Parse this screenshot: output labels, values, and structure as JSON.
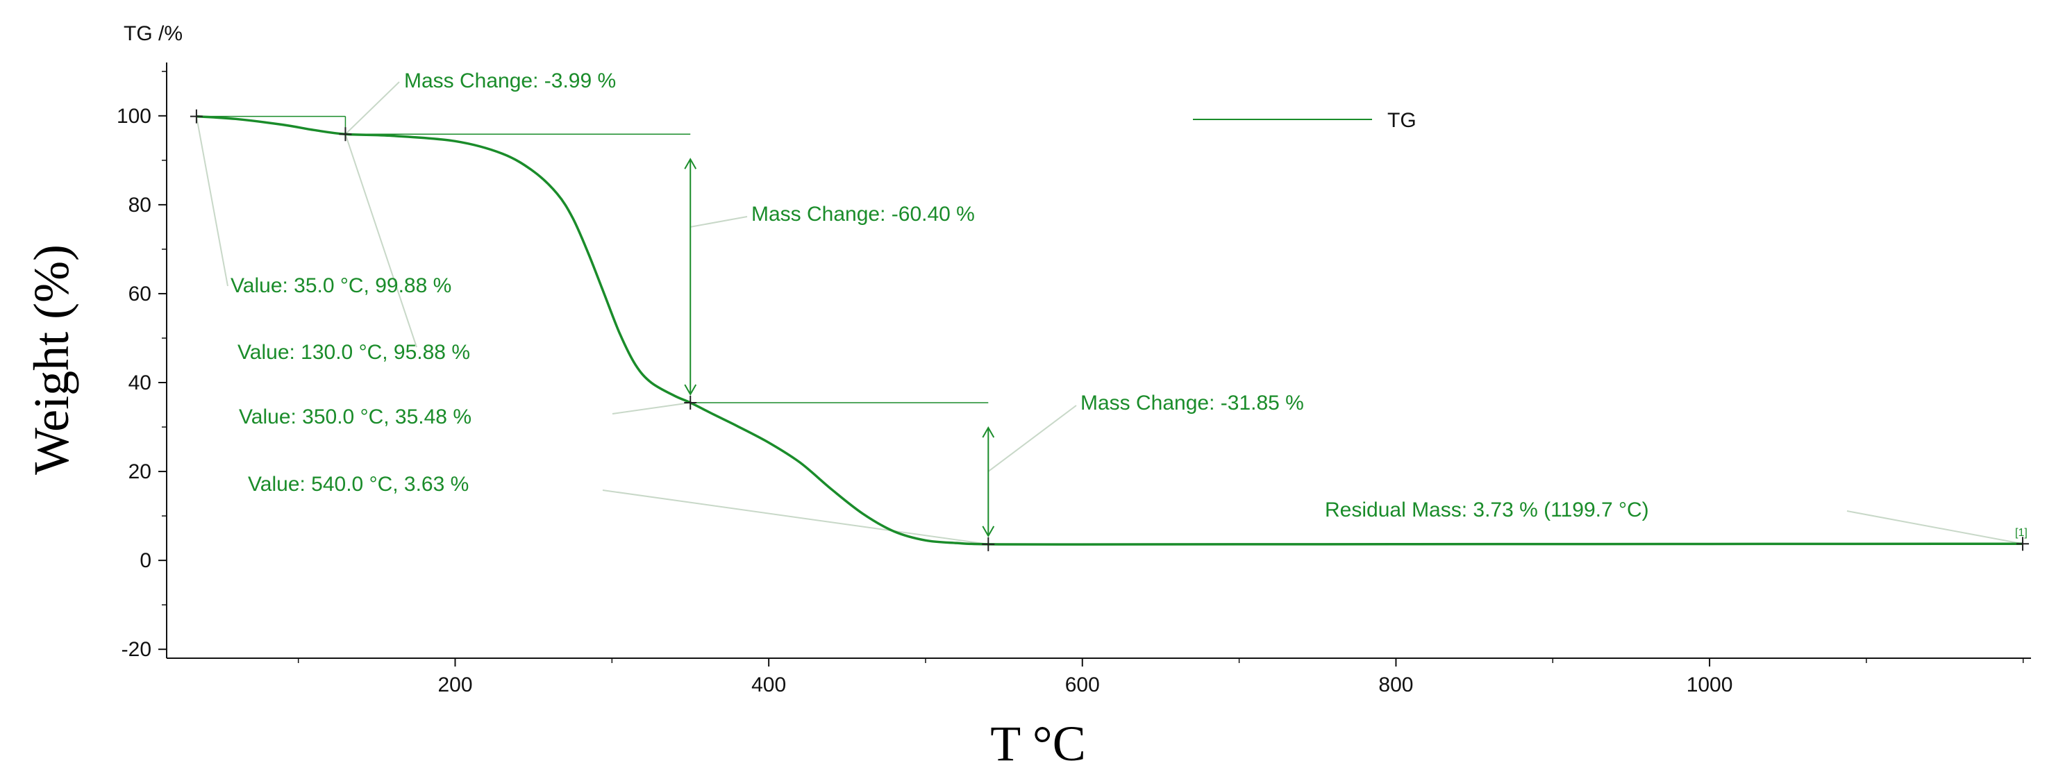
{
  "chart_data": {
    "type": "line",
    "title": "",
    "unit_label": "TG /%",
    "xlabel": "T °C",
    "ylabel": "Weight (%)",
    "xlim": [
      16,
      1205
    ],
    "ylim": [
      -22,
      112
    ],
    "x_ticks": [
      200,
      400,
      600,
      800,
      1000
    ],
    "y_ticks": [
      -20,
      0,
      20,
      40,
      60,
      80,
      100
    ],
    "legend": {
      "position": "top-right",
      "label": "TG"
    },
    "series": [
      {
        "name": "TG",
        "color": "#1a8c2a",
        "x": [
          35,
          60,
          90,
          110,
          130,
          160,
          200,
          230,
          250,
          265,
          275,
          285,
          295,
          305,
          315,
          325,
          340,
          350,
          365,
          380,
          400,
          420,
          440,
          460,
          480,
          500,
          520,
          540,
          600,
          800,
          1000,
          1199.7
        ],
        "y": [
          99.88,
          99.3,
          98.0,
          96.8,
          95.88,
          95.5,
          94.3,
          91.5,
          87.5,
          82.5,
          77.0,
          69.0,
          60.0,
          51.0,
          44.0,
          40.0,
          37.0,
          35.48,
          32.8,
          30.2,
          26.5,
          22.0,
          16.0,
          10.5,
          6.5,
          4.5,
          3.9,
          3.63,
          3.6,
          3.65,
          3.7,
          3.73
        ]
      }
    ],
    "points": [
      {
        "x": 35.0,
        "y": 99.88,
        "label": "Value: 35.0 °C, 99.88 %"
      },
      {
        "x": 130.0,
        "y": 95.88,
        "label": "Value: 130.0 °C, 95.88 %"
      },
      {
        "x": 350.0,
        "y": 35.48,
        "label": "Value: 350.0 °C, 35.48 %"
      },
      {
        "x": 540.0,
        "y": 3.63,
        "label": "Value: 540.0 °C, 3.63 %"
      },
      {
        "x": 1199.7,
        "y": 3.73,
        "label": "Residual Mass: 3.73 % (1199.7 °C)"
      }
    ],
    "mass_changes": [
      {
        "x_from": 35,
        "x_to": 130,
        "y_from": 99.88,
        "y_to": 95.88,
        "label": "Mass Change: -3.99 %"
      },
      {
        "x_from": 130,
        "x_to": 350,
        "y_from": 95.88,
        "y_to": 35.48,
        "label": "Mass Change: -60.40 %"
      },
      {
        "x_from": 350,
        "x_to": 540,
        "y_from": 35.48,
        "y_to": 3.63,
        "label": "Mass Change: -31.85 %"
      }
    ],
    "end_marker": "[1]"
  },
  "colors": {
    "curve": "#1a8c2a",
    "annotation": "#1a8c2a",
    "leader": "#c8d8c8",
    "axis": "#111111"
  }
}
